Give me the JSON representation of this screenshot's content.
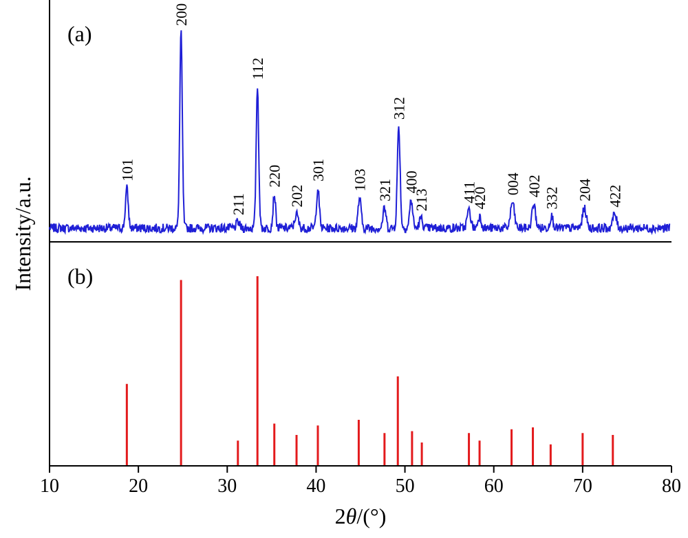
{
  "chart_data": [
    {
      "type": "line",
      "panel_label": "(a)",
      "color": "#1f1fd6",
      "peaks": [
        {
          "x": 18.7,
          "height": 0.2,
          "width": 0.22,
          "label": "101"
        },
        {
          "x": 24.8,
          "height": 0.98,
          "width": 0.2,
          "label": "200"
        },
        {
          "x": 31.2,
          "height": 0.03,
          "width": 0.25,
          "label": "211"
        },
        {
          "x": 33.4,
          "height": 0.71,
          "width": 0.2,
          "label": "112"
        },
        {
          "x": 35.3,
          "height": 0.17,
          "width": 0.2,
          "label": "220"
        },
        {
          "x": 37.8,
          "height": 0.07,
          "width": 0.28,
          "label": "202"
        },
        {
          "x": 40.2,
          "height": 0.2,
          "width": 0.22,
          "label": "301"
        },
        {
          "x": 44.9,
          "height": 0.15,
          "width": 0.24,
          "label": "103"
        },
        {
          "x": 47.7,
          "height": 0.1,
          "width": 0.24,
          "label": "321"
        },
        {
          "x": 49.3,
          "height": 0.51,
          "width": 0.22,
          "label": "312"
        },
        {
          "x": 50.7,
          "height": 0.14,
          "width": 0.24,
          "label": "400"
        },
        {
          "x": 51.8,
          "height": 0.05,
          "width": 0.25,
          "label": "213"
        },
        {
          "x": 57.2,
          "height": 0.09,
          "width": 0.28,
          "label": "411"
        },
        {
          "x": 58.4,
          "height": 0.06,
          "width": 0.26,
          "label": "420"
        },
        {
          "x": 62.1,
          "height": 0.13,
          "width": 0.3,
          "label": "004"
        },
        {
          "x": 64.5,
          "height": 0.12,
          "width": 0.28,
          "label": "402"
        },
        {
          "x": 66.5,
          "height": 0.06,
          "width": 0.26,
          "label": "332"
        },
        {
          "x": 70.2,
          "height": 0.1,
          "width": 0.3,
          "label": "204"
        },
        {
          "x": 73.6,
          "height": 0.07,
          "width": 0.3,
          "label": "422"
        }
      ]
    },
    {
      "type": "bar",
      "panel_label": "(b)",
      "color": "#e31a1c",
      "x": [
        18.7,
        24.8,
        31.2,
        33.4,
        35.3,
        37.8,
        40.2,
        44.8,
        47.7,
        49.2,
        50.8,
        51.9,
        57.2,
        58.4,
        62.0,
        64.4,
        66.4,
        70.0,
        73.4
      ],
      "values": [
        0.43,
        0.98,
        0.13,
        1.0,
        0.22,
        0.16,
        0.21,
        0.24,
        0.17,
        0.47,
        0.18,
        0.12,
        0.17,
        0.13,
        0.19,
        0.2,
        0.11,
        0.17,
        0.16
      ]
    }
  ],
  "axes": {
    "xlim": [
      10,
      80
    ],
    "xticks": [
      10,
      20,
      30,
      40,
      50,
      60,
      70,
      80
    ],
    "xlabel_prefix": "2",
    "xlabel_theta": "θ",
    "xlabel_suffix": "/(°)",
    "ylabel": "Intensity/a.u."
  }
}
